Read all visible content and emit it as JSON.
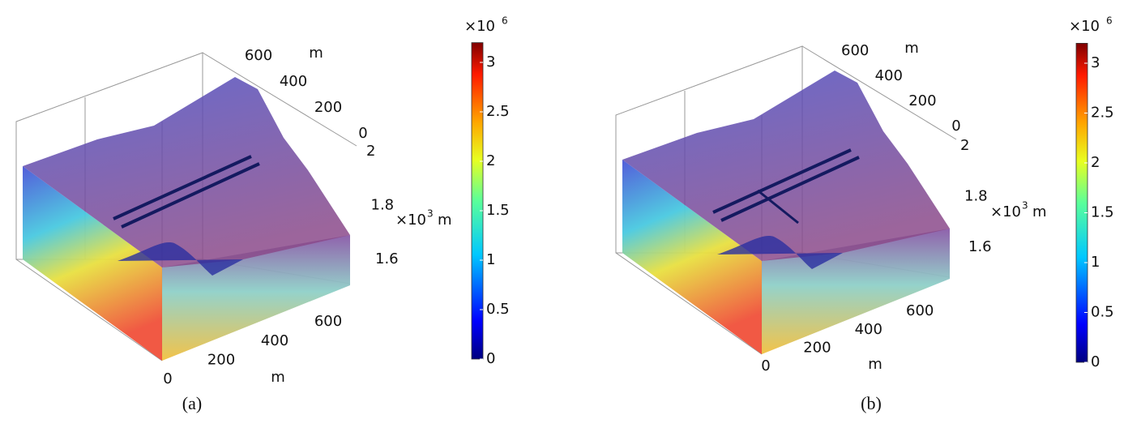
{
  "panels": [
    {
      "caption": "(a)",
      "colorbar": {
        "multiplier": "×10",
        "exponent": "6",
        "lim": [
          0,
          3.2
        ],
        "ticks": [
          0,
          0.5,
          1,
          1.5,
          2,
          2.5,
          3
        ]
      },
      "x_axis": {
        "ticks": [
          0,
          200,
          400,
          600
        ],
        "unit": "m"
      },
      "y_axis": {
        "ticks": [
          0,
          200,
          400,
          600
        ],
        "unit": "m"
      },
      "z_axis": {
        "ticks": [
          1.6,
          1.8,
          2
        ],
        "multiplier": "×10",
        "exponent": "3",
        "unit": "m"
      }
    },
    {
      "caption": "(b)",
      "colorbar": {
        "multiplier": "×10",
        "exponent": "6",
        "lim": [
          0,
          3.2
        ],
        "ticks": [
          0,
          0.5,
          1,
          1.5,
          2,
          2.5,
          3
        ]
      },
      "x_axis": {
        "ticks": [
          0,
          200,
          400,
          600
        ],
        "unit": "m"
      },
      "y_axis": {
        "ticks": [
          0,
          200,
          400,
          600
        ],
        "unit": "m"
      },
      "z_axis": {
        "ticks": [
          1.6,
          1.8,
          2
        ],
        "multiplier": "×10",
        "exponent": "3",
        "unit": "m"
      }
    }
  ]
}
